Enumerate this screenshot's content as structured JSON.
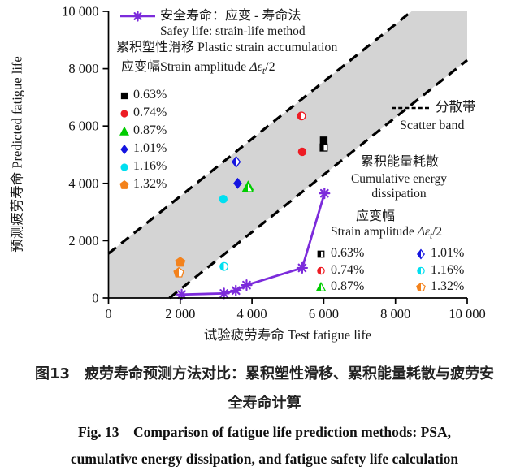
{
  "colors": {
    "purple": "#7c2bdb",
    "red": "#ed1c24",
    "green": "#00cc00",
    "blue": "#1414e0",
    "cyan": "#00dff0",
    "orange": "#f3821c",
    "black": "#000000",
    "band_gray": "#d4d4d4",
    "axis_black": "#000000"
  },
  "symbols": {
    "delta_eps": "Δε",
    "sub_t": "t",
    "per_two": "/2"
  },
  "legend_safety": {
    "zh": "安全寿命：应变 - 寿命法",
    "en": "Safey life: strain-life method"
  },
  "legend_psa": {
    "title": "累积塑性滑移 Plastic strain accumulation",
    "amp_zh": "应变幅",
    "amp_en": "Strain amplitude "
  },
  "legend_band": {
    "zh": "分散带",
    "en": "Scatter band"
  },
  "legend_energy": {
    "zh": "累积能量耗散",
    "en1": "Cumulative energy",
    "en2": "dissipation",
    "amp_zh": "应变幅",
    "amp_en": "Strain amplitude "
  },
  "axes": {
    "x_label": "试验疲劳寿命 Test fatigue life",
    "y_label": "预测疲劳寿命 Predicted fatigue life"
  },
  "caption": {
    "zh1": "图13　疲劳寿命预测方法对比：累积塑性滑移、累积能量耗散与疲劳安",
    "zh2": "全寿命计算",
    "en1": "Fig. 13　Comparison of fatigue life prediction methods: PSA,",
    "en2": "cumulative energy dissipation, and fatigue safety life calculation"
  },
  "chart_data": {
    "type": "scatter",
    "title": "",
    "xlabel": "试验疲劳寿命 Test fatigue life",
    "ylabel": "预测疲劳寿命 Predicted fatigue life",
    "xlim": [
      0,
      10000
    ],
    "ylim": [
      0,
      10000
    ],
    "grid": false,
    "x_ticks": [
      0,
      2000,
      4000,
      6000,
      8000,
      10000
    ],
    "x_tick_labels": [
      "0",
      "2 000",
      "4 000",
      "6 000",
      "8 000",
      "10 000"
    ],
    "y_ticks": [
      0,
      2000,
      4000,
      6000,
      8000,
      10000
    ],
    "y_tick_labels": [
      "0",
      "2 000",
      "4 000",
      "6 000",
      "8 000",
      "10 000"
    ],
    "scatter_band": {
      "slope": 1,
      "upper_offset": 1550,
      "lower_offset": -1700,
      "fill": "#d4d4d4",
      "line_color": "#000000"
    },
    "amplitudes": [
      "0.63%",
      "0.74%",
      "0.87%",
      "1.01%",
      "1.16%",
      "1.32%"
    ],
    "series": [
      {
        "name": "安全寿命：应变-寿命法 Safety life: strain-life method",
        "kind": "line",
        "marker": "star",
        "color": "#7c2bdb",
        "points": [
          {
            "x": 2040,
            "y": 120
          },
          {
            "x": 3220,
            "y": 160
          },
          {
            "x": 3550,
            "y": 260
          },
          {
            "x": 3850,
            "y": 450
          },
          {
            "x": 5400,
            "y": 1050
          },
          {
            "x": 6020,
            "y": 3650
          }
        ]
      },
      {
        "name": "累积塑性滑移 Plastic strain accumulation",
        "kind": "scatter",
        "fill_style": "solid",
        "points": [
          {
            "amplitude": "0.63%",
            "shape": "square",
            "color": "#000000",
            "x": 6000,
            "y": 5500
          },
          {
            "amplitude": "0.74%",
            "shape": "circle",
            "color": "#ed1c24",
            "x": 5400,
            "y": 5100
          },
          {
            "amplitude": "0.87%",
            "shape": "triangle",
            "color": "#00cc00",
            "x": 3900,
            "y": 3900
          },
          {
            "amplitude": "1.01%",
            "shape": "diamond",
            "color": "#1414e0",
            "x": 3600,
            "y": 4000
          },
          {
            "amplitude": "1.16%",
            "shape": "circle",
            "color": "#00dff0",
            "x": 3200,
            "y": 3450
          },
          {
            "amplitude": "1.32%",
            "shape": "pentagon",
            "color": "#f3821c",
            "x": 2000,
            "y": 1250
          }
        ]
      },
      {
        "name": "累积能量耗散 Cumulative energy dissipation",
        "kind": "scatter",
        "fill_style": "half",
        "points": [
          {
            "amplitude": "0.63%",
            "shape": "square",
            "color": "#000000",
            "x": 6000,
            "y": 5250
          },
          {
            "amplitude": "0.74%",
            "shape": "circle",
            "color": "#ed1c24",
            "x": 5380,
            "y": 6350
          },
          {
            "amplitude": "0.87%",
            "shape": "triangle",
            "color": "#00cc00",
            "x": 3880,
            "y": 3850
          },
          {
            "amplitude": "1.01%",
            "shape": "diamond",
            "color": "#1414e0",
            "x": 3560,
            "y": 4750
          },
          {
            "amplitude": "1.16%",
            "shape": "circle",
            "color": "#00dff0",
            "x": 3220,
            "y": 1100
          },
          {
            "amplitude": "1.32%",
            "shape": "pentagon",
            "color": "#f3821c",
            "x": 1960,
            "y": 880
          }
        ]
      }
    ]
  }
}
